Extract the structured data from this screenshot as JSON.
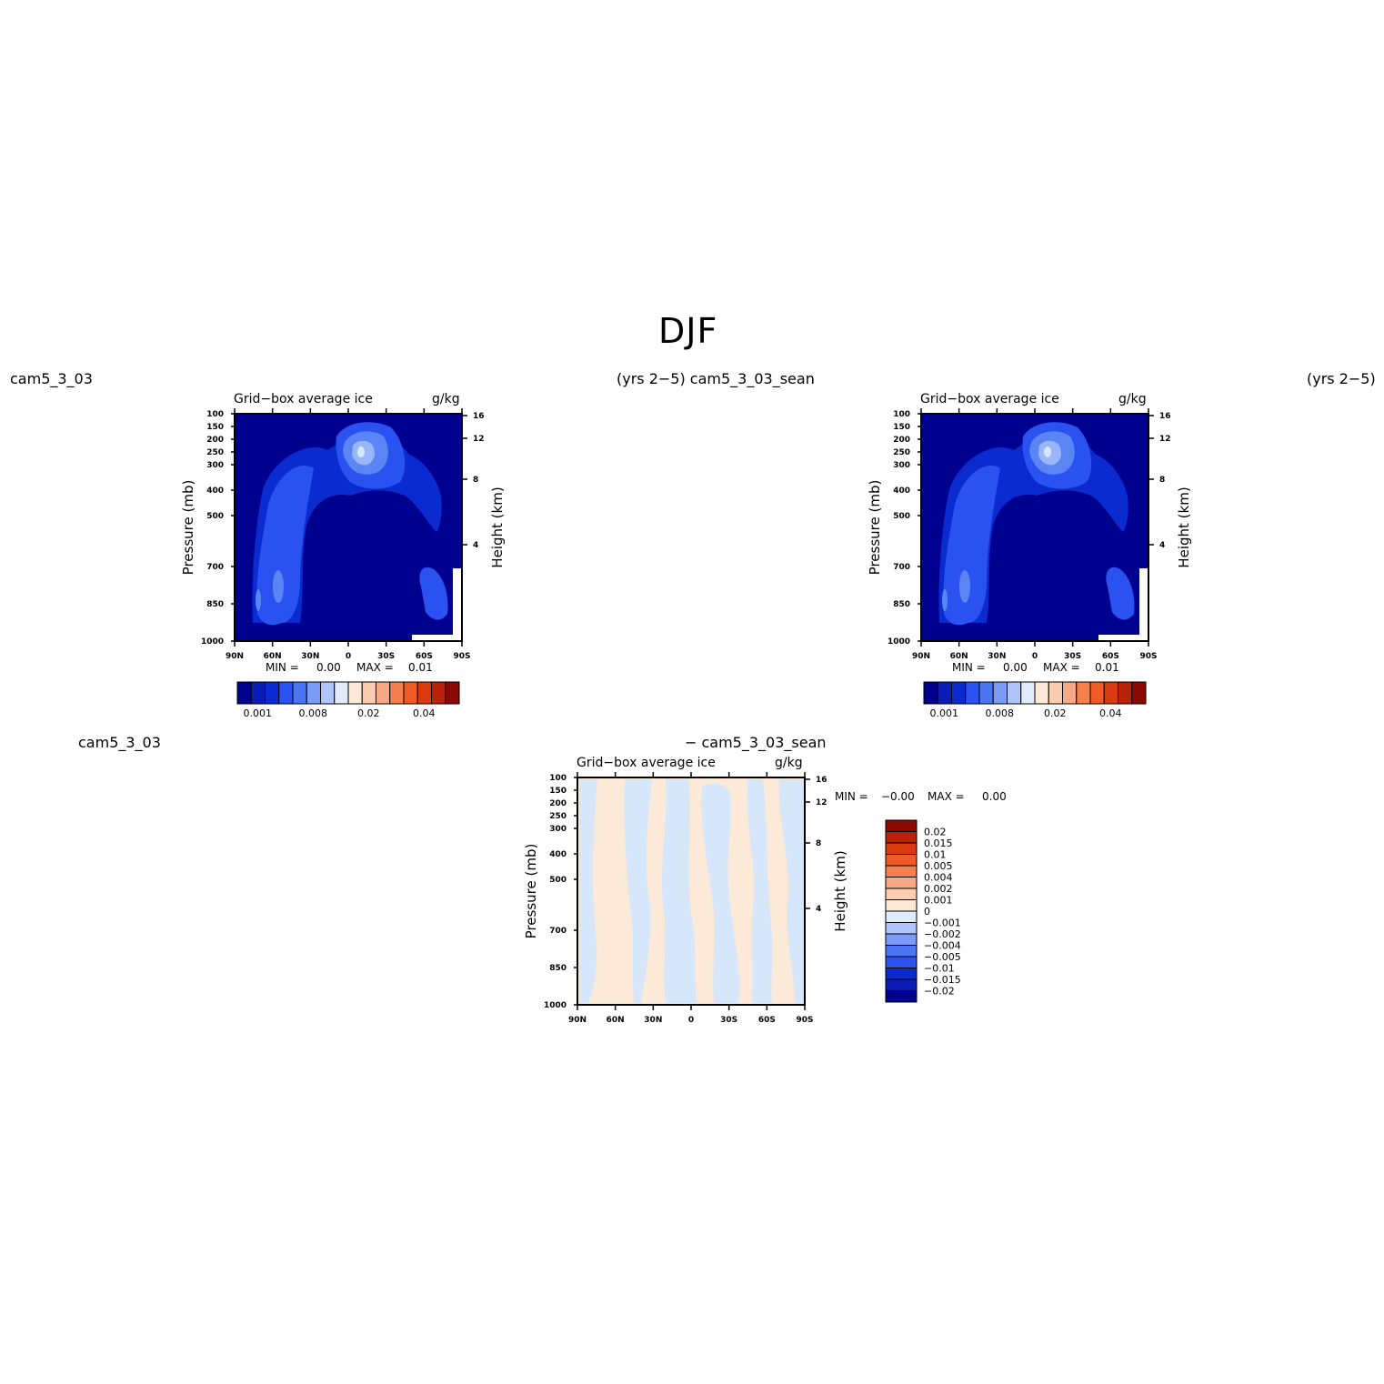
{
  "title": "DJF",
  "labels": {
    "top_left": "cam5_3_03",
    "top_center": "(yrs 2−5) cam5_3_03_sean",
    "top_right": "(yrs 2−5)",
    "bottom_left": "cam5_3_03",
    "bottom_center": "− cam5_3_03_sean"
  },
  "colors": {
    "deep_blue": "#00008f",
    "mid_blue": "#0a2bd0",
    "blue": "#2a52f0",
    "light_blue": "#5a86f5",
    "pale_blue": "#9ab6f8",
    "pale_neg": "#d6e6fb",
    "pale_pos": "#fde9d8"
  },
  "chart_data": [
    {
      "type": "heatmap",
      "id": "panel-1",
      "title": "Grid−box average ice",
      "units": "g/kg",
      "xlabel": "",
      "ylabel": "Pressure (mb)",
      "y2label": "Height (km)",
      "x_ticks": [
        "90N",
        "60N",
        "30N",
        "0",
        "30S",
        "60S",
        "90S"
      ],
      "y_ticks": [
        "100",
        "150",
        "200",
        "250",
        "300",
        "400",
        "500",
        "700",
        "850",
        "1000"
      ],
      "y2_ticks": [
        "16",
        "12",
        "8",
        "4"
      ],
      "min_label": "MIN =",
      "min_value": "0.00",
      "max_label": "MAX =",
      "max_value": "0.01",
      "colorbar": {
        "orientation": "horizontal",
        "labels": [
          "0.001",
          "0.008",
          "0.02",
          "0.04"
        ],
        "colors": [
          "#00008f",
          "#0a1cb5",
          "#0a2bd0",
          "#2a52f0",
          "#4a74f4",
          "#7a9cf7",
          "#aec4fa",
          "#e0ecfd",
          "#fde9d8",
          "#fbcdb0",
          "#f8a884",
          "#f6804d",
          "#f05a26",
          "#da3a10",
          "#b82208",
          "#8a0a00"
        ]
      }
    },
    {
      "type": "heatmap",
      "id": "panel-2",
      "title": "Grid−box average ice",
      "units": "g/kg",
      "xlabel": "",
      "ylabel": "Pressure (mb)",
      "y2label": "Height (km)",
      "x_ticks": [
        "90N",
        "60N",
        "30N",
        "0",
        "30S",
        "60S",
        "90S"
      ],
      "y_ticks": [
        "100",
        "150",
        "200",
        "250",
        "300",
        "400",
        "500",
        "700",
        "850",
        "1000"
      ],
      "y2_ticks": [
        "16",
        "12",
        "8",
        "4"
      ],
      "min_label": "MIN =",
      "min_value": "0.00",
      "max_label": "MAX =",
      "max_value": "0.01",
      "colorbar": {
        "orientation": "horizontal",
        "labels": [
          "0.001",
          "0.008",
          "0.02",
          "0.04"
        ],
        "colors": [
          "#00008f",
          "#0a1cb5",
          "#0a2bd0",
          "#2a52f0",
          "#4a74f4",
          "#7a9cf7",
          "#aec4fa",
          "#e0ecfd",
          "#fde9d8",
          "#fbcdb0",
          "#f8a884",
          "#f6804d",
          "#f05a26",
          "#da3a10",
          "#b82208",
          "#8a0a00"
        ]
      }
    },
    {
      "type": "heatmap",
      "id": "panel-diff",
      "title": "Grid−box average ice",
      "units": "g/kg",
      "xlabel": "",
      "ylabel": "Pressure (mb)",
      "y2label": "Height (km)",
      "x_ticks": [
        "90N",
        "60N",
        "30N",
        "0",
        "30S",
        "60S",
        "90S"
      ],
      "y_ticks": [
        "100",
        "150",
        "200",
        "250",
        "300",
        "400",
        "500",
        "700",
        "850",
        "1000"
      ],
      "y2_ticks": [
        "16",
        "12",
        "8",
        "4"
      ],
      "min_label": "MIN =",
      "min_value": "−0.00",
      "max_label": "MAX =",
      "max_value": "0.00",
      "colorbar": {
        "orientation": "vertical",
        "labels": [
          "0.02",
          "0.015",
          "0.01",
          "0.005",
          "0.004",
          "0.002",
          "0.001",
          "0",
          "−0.001",
          "−0.002",
          "−0.004",
          "−0.005",
          "−0.01",
          "−0.015",
          "−0.02"
        ],
        "colors": [
          "#8a0a00",
          "#b82208",
          "#da3a10",
          "#f05a26",
          "#f6804d",
          "#f8a884",
          "#fbcdb0",
          "#fde9d8",
          "#e0ecfd",
          "#aec4fa",
          "#7a9cf7",
          "#4a74f4",
          "#2a52f0",
          "#0a2bd0",
          "#0a1cb5",
          "#00008f"
        ]
      }
    }
  ]
}
